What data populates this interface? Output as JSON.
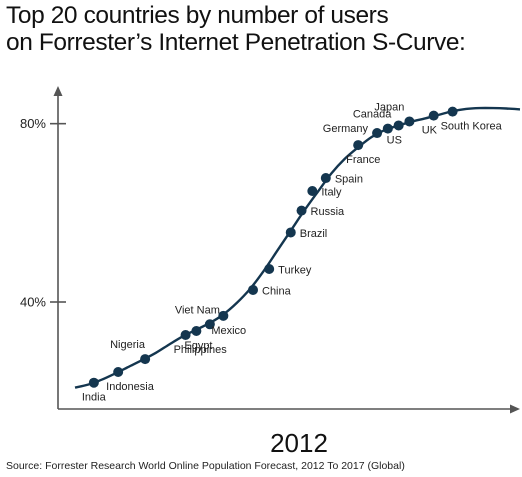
{
  "title": {
    "line1": "Top 20 countries by number of users",
    "line2": "on Forrester’s Internet Penetration S-Curve:"
  },
  "source": "Source: Forrester Research World Online Population Forecast, 2012 To 2017 (Global)",
  "colors": {
    "curve": "#14364f",
    "marker": "#14364f",
    "axis": "#555555",
    "text": "#222222"
  },
  "chart_data": {
    "type": "line",
    "title": "Top 20 countries by number of users on Forrester’s Internet Penetration S-Curve:",
    "xlabel": "2012",
    "ylabel": "",
    "x_axis_ticks": false,
    "ylim": [
      16,
      88
    ],
    "yticks": [
      {
        "value": 40,
        "label": "40%"
      },
      {
        "value": 80,
        "label": "80%"
      }
    ],
    "grid": false,
    "curve": [
      [
        0,
        20.8
      ],
      [
        5,
        21.5
      ],
      [
        10,
        22.6
      ],
      [
        15,
        24
      ],
      [
        20,
        25.5
      ],
      [
        25,
        27
      ],
      [
        30,
        28.6
      ],
      [
        35,
        30.5
      ],
      [
        40,
        32.3
      ],
      [
        45,
        33.8
      ],
      [
        50,
        35.3
      ],
      [
        55,
        37.2
      ],
      [
        60,
        39.8
      ],
      [
        65,
        43
      ],
      [
        70,
        47
      ],
      [
        75,
        51.5
      ],
      [
        80,
        56
      ],
      [
        85,
        60.5
      ],
      [
        90,
        64.7
      ],
      [
        95,
        68.8
      ],
      [
        100,
        72.1
      ],
      [
        105,
        74.7
      ],
      [
        110,
        77
      ],
      [
        115,
        78.6
      ],
      [
        120,
        79.6
      ],
      [
        125,
        80.5
      ],
      [
        130,
        81.2
      ],
      [
        135,
        82
      ],
      [
        140,
        82.8
      ],
      [
        145,
        83.3
      ],
      [
        150,
        83.5
      ],
      [
        155,
        83.5
      ],
      [
        160,
        83.4
      ],
      [
        165,
        83.2
      ]
    ],
    "series": [
      {
        "points": [
          {
            "label": "India",
            "x": 7,
            "y": 21.9,
            "label_pos": "below"
          },
          {
            "label": "Indonesia",
            "x": 16,
            "y": 24.3,
            "label_pos": "below"
          },
          {
            "label": "Nigeria",
            "x": 26,
            "y": 27.2,
            "label_pos": "above"
          },
          {
            "label": "Philippines",
            "x": 41,
            "y": 32.6,
            "label_pos": "below"
          },
          {
            "label": "Egypt",
            "x": 45,
            "y": 33.5,
            "label_pos": "below"
          },
          {
            "label": "Viet Nam",
            "x": 50,
            "y": 35.0,
            "label_pos": "above"
          },
          {
            "label": "Mexico",
            "x": 55,
            "y": 36.9,
            "label_pos": "below"
          },
          {
            "label": "China",
            "x": 66,
            "y": 42.7,
            "label_pos": "right"
          },
          {
            "label": "Turkey",
            "x": 72,
            "y": 47.4,
            "label_pos": "right"
          },
          {
            "label": "Brazil",
            "x": 80,
            "y": 55.6,
            "label_pos": "right"
          },
          {
            "label": "Russia",
            "x": 84,
            "y": 60.5,
            "label_pos": "right"
          },
          {
            "label": "Italy",
            "x": 88,
            "y": 64.9,
            "label_pos": "right"
          },
          {
            "label": "Spain",
            "x": 93,
            "y": 67.8,
            "label_pos": "right"
          },
          {
            "label": "France",
            "x": 105,
            "y": 75.2,
            "label_pos": "below"
          },
          {
            "label": "Germany",
            "x": 112,
            "y": 77.9,
            "label_pos": "left"
          },
          {
            "label": "Canada",
            "x": 116,
            "y": 78.9,
            "label_pos": "above"
          },
          {
            "label": "US",
            "x": 120,
            "y": 79.6,
            "label_pos": "below"
          },
          {
            "label": "Japan",
            "x": 124,
            "y": 80.5,
            "label_pos": "above"
          },
          {
            "label": "UK",
            "x": 133,
            "y": 81.8,
            "label_pos": "below"
          },
          {
            "label": "South Korea",
            "x": 140,
            "y": 82.7,
            "label_pos": "below"
          }
        ]
      }
    ]
  }
}
